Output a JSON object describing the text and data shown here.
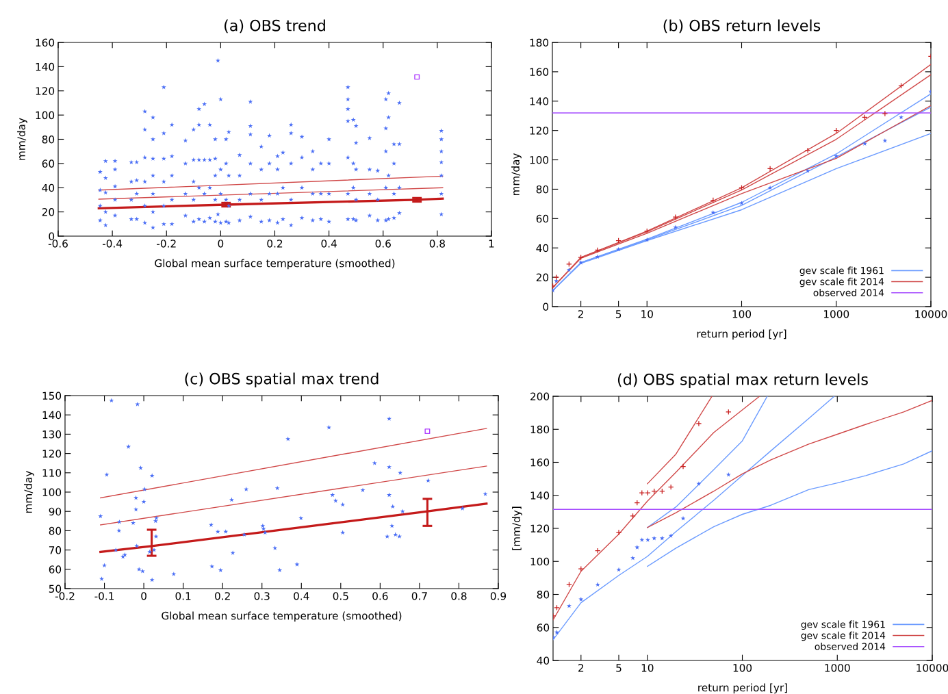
{
  "chart_data": [
    {
      "type": "scatter",
      "title": "(a) OBS trend",
      "xlabel": "Global mean surface temperature (smoothed)",
      "ylabel": "mm/day",
      "xlim": [
        -0.6,
        1
      ],
      "xticks": [
        -0.6,
        -0.4,
        -0.2,
        0,
        0.2,
        0.4,
        0.6,
        0.8,
        1
      ],
      "ylim": [
        0,
        160
      ],
      "yticks": [
        0,
        20,
        40,
        60,
        80,
        100,
        120,
        140,
        160
      ],
      "series": [
        {
          "marker": "star",
          "color": "#4a6ef5",
          "x": [
            -0.445,
            -0.445,
            -0.445,
            -0.445,
            -0.425,
            -0.425,
            -0.425,
            -0.425,
            -0.425,
            -0.39,
            -0.39,
            -0.39,
            -0.39,
            -0.39,
            -0.33,
            -0.33,
            -0.33,
            -0.33,
            -0.31,
            -0.31,
            -0.31,
            -0.31,
            -0.28,
            -0.28,
            -0.28,
            -0.28,
            -0.28,
            -0.28,
            -0.25,
            -0.25,
            -0.25,
            -0.25,
            -0.25,
            -0.25,
            -0.25,
            -0.21,
            -0.21,
            -0.21,
            -0.21,
            -0.21,
            -0.21,
            -0.18,
            -0.18,
            -0.18,
            -0.18,
            -0.18,
            -0.13,
            -0.13,
            -0.13,
            -0.13,
            -0.1,
            -0.1,
            -0.1,
            -0.1,
            -0.1,
            -0.08,
            -0.08,
            -0.08,
            -0.08,
            -0.08,
            -0.06,
            -0.06,
            -0.06,
            -0.06,
            -0.04,
            -0.04,
            -0.04,
            -0.04,
            -0.02,
            -0.02,
            -0.02,
            -0.02,
            -0.02,
            -0.01,
            -0.01,
            0,
            0,
            0,
            0,
            0.02,
            0.02,
            0.02,
            0.02,
            0.03,
            0.03,
            0.03,
            0.03,
            0.07,
            0.07,
            0.07,
            0.07,
            0.11,
            0.11,
            0.11,
            0.11,
            0.11,
            0.11,
            0.15,
            0.15,
            0.15,
            0.15,
            0.18,
            0.18,
            0.18,
            0.18,
            0.21,
            0.21,
            0.21,
            0.21,
            0.23,
            0.23,
            0.23,
            0.26,
            0.26,
            0.26,
            0.26,
            0.26,
            0.3,
            0.3,
            0.3,
            0.3,
            0.34,
            0.34,
            0.34,
            0.34,
            0.37,
            0.37,
            0.37,
            0.4,
            0.4,
            0.4,
            0.4,
            0.47,
            0.47,
            0.47,
            0.47,
            0.47,
            0.47,
            0.47,
            0.49,
            0.49,
            0.49,
            0.49,
            0.5,
            0.5,
            0.5,
            0.5,
            0.5,
            0.55,
            0.55,
            0.55,
            0.55,
            0.58,
            0.58,
            0.58,
            0.61,
            0.61,
            0.61,
            0.61,
            0.61,
            0.62,
            0.62,
            0.62,
            0.62,
            0.64,
            0.64,
            0.64,
            0.64,
            0.66,
            0.66,
            0.66,
            0.66,
            0.815,
            0.815,
            0.815,
            0.815,
            0.815,
            0.815,
            0.815
          ],
          "values": [
            13,
            25,
            38,
            53,
            9,
            20,
            36,
            48,
            62,
            17,
            30,
            41,
            55,
            62,
            14,
            30,
            45,
            61,
            14,
            35,
            46,
            61,
            11,
            25,
            45,
            65,
            88,
            103,
            7,
            20,
            35,
            50,
            64,
            80,
            98,
            10,
            25,
            45,
            64,
            85,
            123,
            10,
            30,
            50,
            66,
            92,
            17,
            35,
            60,
            79,
            12,
            30,
            45,
            63,
            88,
            14,
            40,
            63,
            92,
            105,
            12,
            35,
            63,
            109,
            15,
            40,
            63,
            92,
            12,
            30,
            50,
            64,
            80,
            18,
            145,
            11,
            35,
            55,
            113,
            12,
            30,
            60,
            80,
            11,
            25,
            50,
            86,
            13,
            30,
            50,
            67,
            16,
            35,
            60,
            84,
            91,
            111,
            12,
            30,
            55,
            74,
            13,
            35,
            60,
            83,
            11,
            35,
            55,
            66,
            14,
            40,
            69,
            9,
            30,
            60,
            85,
            92,
            15,
            40,
            65,
            82,
            13,
            35,
            55,
            70,
            14,
            35,
            60,
            12,
            35,
            60,
            80,
            14,
            35,
            65,
            95,
            105,
            113,
            123,
            14,
            40,
            60,
            96,
            13,
            30,
            55,
            77,
            91,
            17,
            35,
            55,
            81,
            13,
            30,
            54,
            13,
            40,
            70,
            89,
            113,
            14,
            50,
            98,
            118,
            15,
            35,
            60,
            76,
            19,
            40,
            76,
            110,
            18,
            35,
            50,
            61,
            70,
            80,
            87
          ]
        },
        {
          "type": "line",
          "color": "#d04848",
          "x": [
            -0.45,
            0.82
          ],
          "values": [
            38,
            49.5
          ]
        },
        {
          "type": "line",
          "color": "#d04848",
          "x": [
            -0.45,
            0.82
          ],
          "values": [
            30.5,
            40
          ]
        },
        {
          "type": "line",
          "color": "#c41a1a",
          "x": [
            -0.45,
            0.02,
            0.725,
            0.82
          ],
          "values": [
            23,
            26,
            30,
            31
          ],
          "errors": [
            null,
            [
              24.5,
              27.5
            ],
            [
              28.5,
              31.5
            ],
            null
          ]
        },
        {
          "marker": "square",
          "color": "#b040ff",
          "x": [
            0.725
          ],
          "values": [
            131.5
          ]
        }
      ]
    },
    {
      "type": "scatter",
      "title": "(b) OBS return levels",
      "xlabel": "return period [yr]",
      "ylabel": "mm/day",
      "log": "x",
      "xlim": [
        1.0001,
        10000
      ],
      "xticks": [
        2,
        5,
        10,
        100,
        1000,
        10000
      ],
      "ylim": [
        0,
        180
      ],
      "yticks": [
        0,
        20,
        40,
        60,
        80,
        100,
        120,
        140,
        160,
        180
      ],
      "legend": "bottom right",
      "series": [
        {
          "marker": "star",
          "color": "#4a6ef5",
          "x": [
            1.01,
            1.1,
            1.5,
            2,
            3,
            5,
            10,
            20,
            50,
            100,
            200,
            500,
            1000,
            2000,
            3270,
            4850,
            10000
          ],
          "values": [
            11,
            17.5,
            25,
            30,
            34,
            39,
            45.5,
            54,
            64,
            70.5,
            81,
            92.5,
            102.5,
            111,
            113,
            129,
            146.5
          ]
        },
        {
          "marker": "cross",
          "color": "#c81e1e",
          "x": [
            1.01,
            1.1,
            1.5,
            2,
            3,
            5,
            10,
            20,
            50,
            100,
            200,
            500,
            1000,
            2000,
            3270,
            4850,
            10000
          ],
          "values": [
            14,
            20,
            29,
            33.5,
            38.5,
            45,
            51.5,
            61,
            72.5,
            81,
            94,
            106.5,
            120,
            129,
            131.5,
            150.5,
            170.5
          ]
        },
        {
          "type": "line",
          "name": "gev scale fit 1961",
          "color": "#6b9bff",
          "x": [
            1.01,
            2,
            10,
            100,
            1000,
            10000
          ],
          "values": [
            11,
            30,
            46,
            71,
            104,
            145
          ]
        },
        {
          "type": "line",
          "color": "#6b9bff",
          "x": [
            1.01,
            2,
            10,
            100,
            1000,
            10000
          ],
          "values": [
            11,
            30,
            45.5,
            69,
            102,
            136
          ]
        },
        {
          "type": "line",
          "color": "#6b9bff",
          "x": [
            1.01,
            2,
            10,
            100,
            1000,
            10000
          ],
          "values": [
            11,
            29.5,
            45,
            66,
            94,
            118
          ]
        },
        {
          "type": "line",
          "name": "gev scale fit 2014",
          "color": "#d04848",
          "x": [
            1.01,
            2,
            10,
            100,
            1000,
            10000
          ],
          "values": [
            13,
            33.5,
            51.5,
            81,
            118,
            165
          ]
        },
        {
          "type": "line",
          "color": "#d04848",
          "x": [
            1.01,
            2,
            10,
            100,
            1000,
            10000
          ],
          "values": [
            13,
            33.5,
            51,
            79.5,
            114,
            158
          ]
        },
        {
          "type": "line",
          "color": "#d04848",
          "x": [
            1.01,
            2,
            10,
            100,
            1000,
            10000
          ],
          "values": [
            13,
            33,
            50,
            77,
            101,
            137
          ]
        },
        {
          "type": "line",
          "name": "observed 2014",
          "color": "#a64dff",
          "x": [
            1.0001,
            10000
          ],
          "values": [
            132,
            132
          ]
        }
      ]
    },
    {
      "type": "scatter",
      "title": "(c) OBS spatial max trend",
      "xlabel": "Global mean surface temperature (smoothed)",
      "ylabel": "mm/day",
      "xlim": [
        -0.2,
        0.9
      ],
      "xticks": [
        -0.2,
        -0.1,
        0,
        0.1,
        0.2,
        0.3,
        0.4,
        0.5,
        0.6,
        0.7,
        0.8,
        0.9
      ],
      "ylim": [
        50,
        150
      ],
      "yticks": [
        50,
        60,
        70,
        80,
        90,
        100,
        110,
        120,
        130,
        140,
        150
      ],
      "series": [
        {
          "marker": "star",
          "color": "#4a6ef5",
          "x": [
            -0.11,
            -0.107,
            -0.1,
            -0.094,
            -0.082,
            -0.071,
            -0.062,
            -0.063,
            -0.053,
            -0.048,
            -0.039,
            -0.027,
            -0.02,
            -0.02,
            -0.018,
            -0.016,
            -0.012,
            -0.008,
            -0.003,
            0,
            0.002,
            0.015,
            0.021,
            0.021,
            0.026,
            0.03,
            0.032,
            0.031,
            0.076,
            0.171,
            0.173,
            0.188,
            0.195,
            0.208,
            0.223,
            0.226,
            0.255,
            0.26,
            0.302,
            0.304,
            0.308,
            0.333,
            0.339,
            0.345,
            0.366,
            0.389,
            0.399,
            0.47,
            0.479,
            0.487,
            0.505,
            0.505,
            0.556,
            0.586,
            0.618,
            0.623,
            0.623,
            0.623,
            0.63,
            0.632,
            0.639,
            0.649,
            0.651,
            0.657,
            0.722,
            0.809,
            0.867
          ],
          "values": [
            87.5,
            55,
            62,
            109,
            147.5,
            70,
            84.5,
            80,
            66.5,
            67.5,
            123.5,
            84,
            97,
            91,
            72,
            145.5,
            60,
            112.5,
            59,
            95,
            101.5,
            69,
            108.5,
            54.5,
            70,
            85,
            86.5,
            77,
            57.5,
            83,
            61.5,
            79.5,
            59.5,
            79.5,
            96,
            68.5,
            78,
            101.5,
            82.5,
            81,
            79,
            71,
            102,
            59.5,
            127.5,
            62.5,
            86.5,
            133.5,
            98.5,
            95.5,
            93.5,
            79,
            101,
            115,
            77,
            138,
            113,
            98.5,
            82.5,
            92.5,
            78,
            77,
            110,
            90,
            106,
            91.5,
            99
          ]
        },
        {
          "type": "line",
          "color": "#d04848",
          "x": [
            -0.11,
            0.87
          ],
          "values": [
            97,
            133
          ]
        },
        {
          "type": "line",
          "color": "#d04848",
          "x": [
            -0.11,
            0.87
          ],
          "values": [
            83,
            113.5
          ]
        },
        {
          "type": "line",
          "color": "#c41a1a",
          "x": [
            -0.11,
            0.02,
            0.72,
            0.87
          ],
          "values": [
            69,
            72,
            90,
            94
          ],
          "errors": [
            null,
            [
              67,
              80.5
            ],
            [
              82.5,
              96.5
            ],
            null
          ]
        },
        {
          "marker": "square",
          "color": "#b040ff",
          "x": [
            0.72
          ],
          "values": [
            131.5
          ]
        }
      ]
    },
    {
      "type": "scatter",
      "title": "(d) OBS spatial max return levels",
      "xlabel": "return period [yr]",
      "ylabel": "[mm/dy]",
      "log": "x",
      "xlim": [
        1.016,
        10000
      ],
      "xticks": [
        2,
        5,
        10,
        100,
        1000,
        10000
      ],
      "ylim": [
        40,
        200
      ],
      "yticks": [
        40,
        60,
        80,
        100,
        120,
        140,
        160,
        180,
        200
      ],
      "legend": "bottom right",
      "series": [
        {
          "marker": "star",
          "color": "#4a6ef5",
          "x": [
            1.016,
            1.113,
            1.5,
            2,
            3,
            5,
            7.03,
            7.8,
            8.76,
            10.1,
            11.8,
            14.3,
            17.7,
            23.8,
            34.8,
            71.5
          ],
          "values": [
            54,
            57,
            73,
            77,
            86,
            95,
            102,
            108.5,
            113,
            113,
            114,
            114,
            115.5,
            126,
            147,
            152.5
          ]
        },
        {
          "marker": "cross",
          "color": "#c81e1e",
          "x": [
            1.016,
            1.113,
            1.5,
            2,
            3,
            5,
            7.03,
            7.8,
            8.76,
            10.1,
            11.8,
            14.3,
            17.7,
            23.8,
            34.8,
            71.5
          ],
          "values": [
            67,
            72,
            86,
            95.5,
            106.5,
            117.5,
            127.5,
            135.5,
            141.5,
            141.5,
            142.5,
            142.5,
            145,
            157.5,
            183.5,
            190.5
          ]
        },
        {
          "type": "line",
          "name": "gev scale fit 1961",
          "color": "#6b9bff",
          "x": [
            1.016,
            2,
            5,
            10,
            20,
            50,
            100,
            200,
            500,
            931
          ],
          "values": [
            52.5,
            75,
            91.5,
            103,
            118,
            137,
            152,
            167,
            186.5,
            200
          ]
        },
        {
          "type": "line",
          "color": "#6b9bff",
          "x": [
            10,
            20,
            50,
            100,
            183
          ],
          "values": [
            120.5,
            133,
            155.5,
            173,
            200
          ]
        },
        {
          "type": "line",
          "color": "#6b9bff",
          "x": [
            10,
            20,
            50,
            100,
            200,
            500,
            1000,
            2000,
            5000,
            10000
          ],
          "values": [
            97,
            108,
            121,
            128.5,
            134,
            143.5,
            147.5,
            152,
            159,
            167
          ]
        },
        {
          "type": "line",
          "name": "gev scale fit 2014",
          "color": "#d04848",
          "x": [
            1.016,
            2,
            5,
            10,
            20,
            50,
            152
          ],
          "values": [
            64.5,
            94,
            116.5,
            136.5,
            154,
            178,
            200
          ]
        },
        {
          "type": "line",
          "color": "#d04848",
          "x": [
            10,
            20,
            47.9
          ],
          "values": [
            147,
            165,
            200
          ]
        },
        {
          "type": "line",
          "color": "#d04848",
          "x": [
            10,
            20,
            50,
            100,
            200,
            500,
            1000,
            2000,
            5000,
            10000
          ],
          "values": [
            120.5,
            129.5,
            142.5,
            153,
            161.5,
            171,
            177,
            183,
            190.5,
            197.5
          ]
        },
        {
          "type": "line",
          "name": "observed 2014",
          "color": "#a64dff",
          "x": [
            1.016,
            10000
          ],
          "values": [
            131.5,
            131.5
          ]
        }
      ]
    }
  ]
}
